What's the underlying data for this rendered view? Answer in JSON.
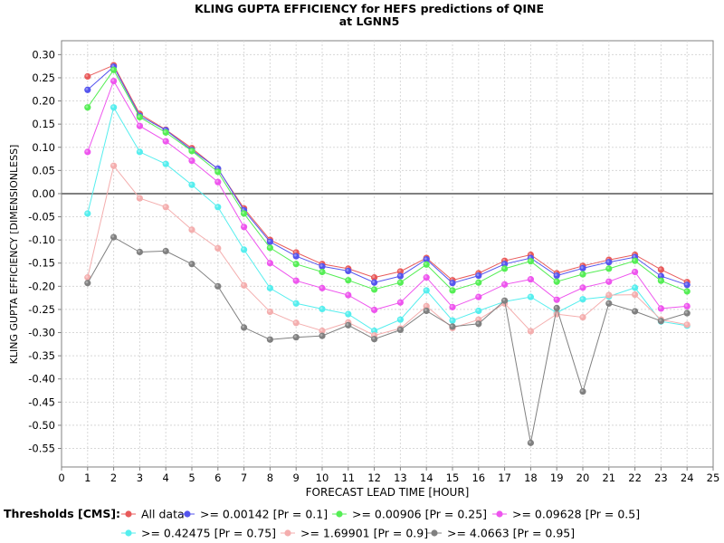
{
  "chart_data": {
    "type": "line",
    "title_line1": "KLING GUPTA EFFICIENCY for HEFS predictions of QINE",
    "title_line2": "at LGNN5",
    "xlabel": "FORECAST LEAD TIME [HOUR]",
    "ylabel": "KLING GUPTA EFFICIENCY [DIMENSIONLESS]",
    "xlim": [
      0,
      25
    ],
    "ylim": [
      -0.59,
      0.33
    ],
    "xticks": [
      0,
      1,
      2,
      3,
      4,
      5,
      6,
      7,
      8,
      9,
      10,
      11,
      12,
      13,
      14,
      15,
      16,
      17,
      18,
      19,
      20,
      21,
      22,
      23,
      24,
      25
    ],
    "yticks": [
      0.3,
      0.25,
      0.2,
      0.15,
      0.1,
      0.05,
      0.0,
      -0.05,
      -0.1,
      -0.15,
      -0.2,
      -0.25,
      -0.3,
      -0.35,
      -0.4,
      -0.45,
      -0.5,
      -0.55
    ],
    "ytick_labels": [
      "0.30",
      "0.25",
      "0.20",
      "0.15",
      "0.10",
      "0.05",
      "0.00",
      "-0.05",
      "-0.10",
      "-0.15",
      "-0.20",
      "-0.25",
      "-0.30",
      "-0.35",
      "-0.40",
      "-0.45",
      "-0.50",
      "-0.55"
    ],
    "grid": true,
    "zero_line": true,
    "legend_title": "Thresholds [CMS]:",
    "legend_position": "bottom",
    "x": [
      1,
      2,
      3,
      4,
      5,
      6,
      7,
      8,
      9,
      10,
      11,
      12,
      13,
      14,
      15,
      16,
      17,
      18,
      19,
      20,
      21,
      22,
      23,
      24
    ],
    "series": [
      {
        "name": "All data",
        "color": "#e85a5a",
        "values": [
          0.253,
          0.277,
          0.172,
          0.138,
          0.098,
          0.053,
          -0.032,
          -0.1,
          -0.127,
          -0.152,
          -0.162,
          -0.181,
          -0.168,
          -0.139,
          -0.187,
          -0.172,
          -0.145,
          -0.132,
          -0.172,
          -0.156,
          -0.143,
          -0.132,
          -0.164,
          -0.191
        ]
      },
      {
        "name": ">= 0.00142 [Pr = 0.1]",
        "color": "#5555ee",
        "values": [
          0.224,
          0.274,
          0.168,
          0.137,
          0.094,
          0.054,
          -0.036,
          -0.104,
          -0.135,
          -0.157,
          -0.167,
          -0.192,
          -0.178,
          -0.142,
          -0.193,
          -0.177,
          -0.152,
          -0.139,
          -0.177,
          -0.161,
          -0.148,
          -0.137,
          -0.178,
          -0.197
        ]
      },
      {
        "name": ">= 0.00906 [Pr = 0.25]",
        "color": "#55ee55",
        "values": [
          0.186,
          0.267,
          0.165,
          0.132,
          0.092,
          0.047,
          -0.043,
          -0.117,
          -0.152,
          -0.169,
          -0.187,
          -0.207,
          -0.192,
          -0.153,
          -0.209,
          -0.192,
          -0.162,
          -0.146,
          -0.19,
          -0.174,
          -0.162,
          -0.145,
          -0.188,
          -0.211
        ]
      },
      {
        "name": ">= 0.09628 [Pr = 0.5]",
        "color": "#ee55ee",
        "values": [
          0.09,
          0.243,
          0.146,
          0.113,
          0.071,
          0.025,
          -0.072,
          -0.15,
          -0.188,
          -0.204,
          -0.219,
          -0.251,
          -0.235,
          -0.181,
          -0.245,
          -0.223,
          -0.196,
          -0.185,
          -0.229,
          -0.203,
          -0.19,
          -0.169,
          -0.248,
          -0.243
        ]
      },
      {
        "name": ">= 0.42475 [Pr = 0.75]",
        "color": "#55eeee",
        "values": [
          -0.043,
          0.186,
          0.09,
          0.064,
          0.019,
          -0.029,
          -0.121,
          -0.204,
          -0.237,
          -0.249,
          -0.26,
          -0.296,
          -0.272,
          -0.209,
          -0.274,
          -0.253,
          -0.233,
          -0.223,
          -0.257,
          -0.228,
          -0.222,
          -0.203,
          -0.276,
          -0.285
        ]
      },
      {
        "name": ">= 1.69901 [Pr = 0.9]",
        "color": "#f4aeae",
        "values": [
          -0.181,
          0.06,
          -0.01,
          -0.029,
          -0.078,
          -0.118,
          -0.198,
          -0.255,
          -0.279,
          -0.296,
          -0.278,
          -0.306,
          -0.291,
          -0.243,
          -0.29,
          -0.272,
          -0.237,
          -0.297,
          -0.26,
          -0.267,
          -0.219,
          -0.218,
          -0.272,
          -0.283
        ]
      },
      {
        "name": ">= 4.0663 [Pr = 0.95]",
        "color": "#808080",
        "values": [
          -0.193,
          -0.094,
          -0.126,
          -0.124,
          -0.152,
          -0.2,
          -0.289,
          -0.315,
          -0.31,
          -0.307,
          -0.284,
          -0.314,
          -0.294,
          -0.253,
          -0.287,
          -0.281,
          -0.231,
          -0.538,
          -0.247,
          -0.427,
          -0.237,
          -0.254,
          -0.275,
          -0.258
        ]
      }
    ]
  }
}
